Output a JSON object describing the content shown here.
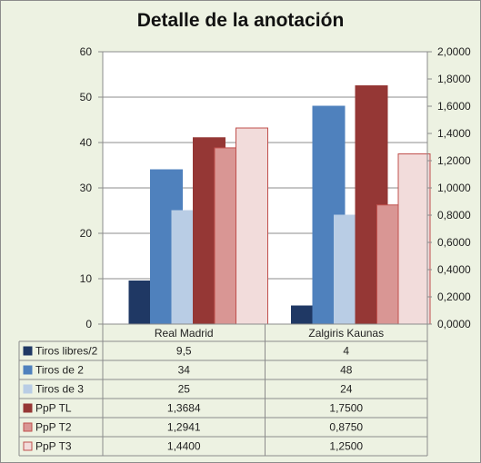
{
  "chart_data": {
    "type": "bar",
    "title": "Detalle de la anotación",
    "categories": [
      "Real Madrid",
      "Zalgiris Kaunas"
    ],
    "y_left": {
      "ylim": [
        0,
        60
      ],
      "ticks": [
        "0",
        "10",
        "20",
        "30",
        "40",
        "50",
        "60"
      ]
    },
    "y_right": {
      "ylim": [
        0,
        2
      ],
      "ticks": [
        "0,0000",
        "0,2000",
        "0,4000",
        "0,6000",
        "0,8000",
        "1,0000",
        "1,2000",
        "1,4000",
        "1,6000",
        "1,8000",
        "2,0000"
      ]
    },
    "grid": "horizontal",
    "legend": "data-table",
    "series": [
      {
        "name": "Tiros libres/2",
        "axis": "left",
        "values": [
          9.5,
          4
        ],
        "labels": [
          "9,5",
          "4"
        ],
        "color": "#1f3864",
        "stroke": "#1f3864"
      },
      {
        "name": "Tiros de 2",
        "axis": "left",
        "values": [
          34,
          48
        ],
        "labels": [
          "34",
          "48"
        ],
        "color": "#4f81bd",
        "stroke": "#4f81bd"
      },
      {
        "name": "Tiros de 3",
        "axis": "left",
        "values": [
          25,
          24
        ],
        "labels": [
          "25",
          "24"
        ],
        "color": "#b9cde5",
        "stroke": "#b9cde5"
      },
      {
        "name": "PpP TL",
        "axis": "right",
        "values": [
          1.3684,
          1.75
        ],
        "labels": [
          "1,3684",
          "1,7500"
        ],
        "color": "#953735",
        "stroke": "#953735"
      },
      {
        "name": "PpP T2",
        "axis": "right",
        "values": [
          1.2941,
          0.875
        ],
        "labels": [
          "1,2941",
          "0,8750"
        ],
        "color": "#d99694",
        "stroke": "#c0504d"
      },
      {
        "name": "PpP T3",
        "axis": "right",
        "values": [
          1.44,
          1.25
        ],
        "labels": [
          "1,4400",
          "1,2500"
        ],
        "color": "#f2dcdb",
        "stroke": "#c0504d"
      }
    ]
  }
}
